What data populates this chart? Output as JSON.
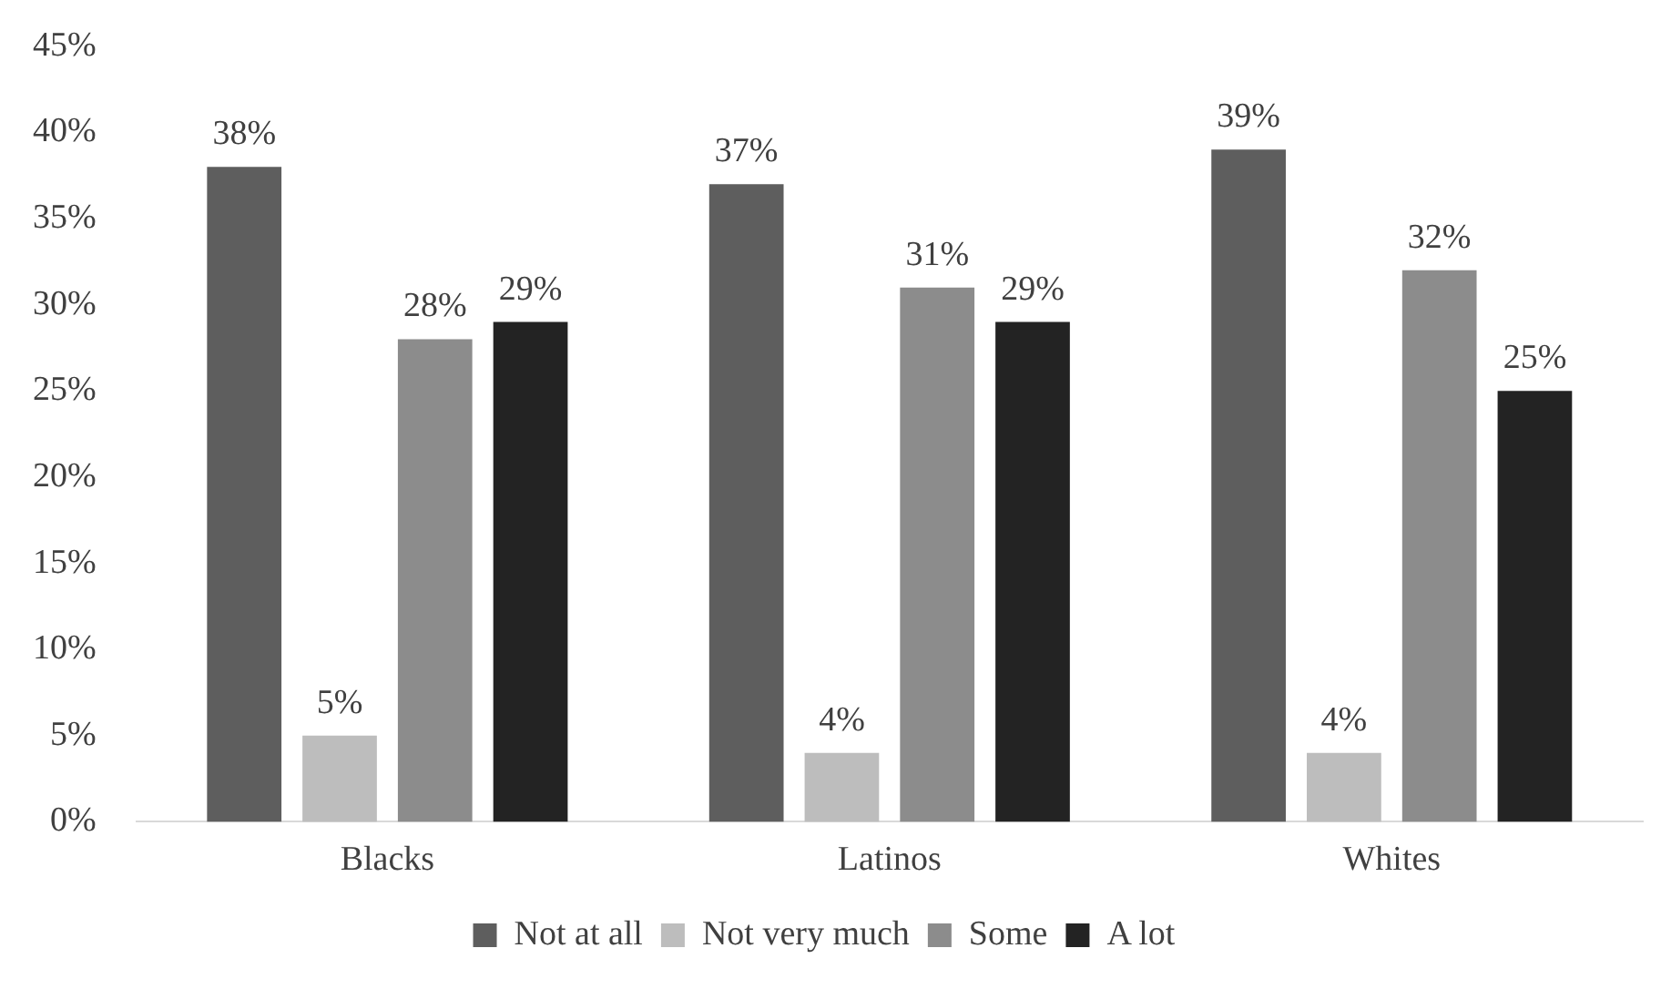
{
  "chart_data": {
    "type": "bar",
    "categories": [
      "Blacks",
      "Latinos",
      "Whites"
    ],
    "series": [
      {
        "name": "Not at all",
        "color": "#5e5e5e",
        "values": [
          38,
          37,
          39
        ],
        "value_labels": [
          "38%",
          "37%",
          "39%"
        ]
      },
      {
        "name": "Not very much",
        "color": "#bdbdbd",
        "values": [
          5,
          4,
          4
        ],
        "value_labels": [
          "5%",
          "4%",
          "4%"
        ]
      },
      {
        "name": "Some",
        "color": "#8c8c8c",
        "values": [
          28,
          31,
          32
        ],
        "value_labels": [
          "28%",
          "31%",
          "32%"
        ]
      },
      {
        "name": "A lot",
        "color": "#232323",
        "values": [
          29,
          29,
          25
        ],
        "value_labels": [
          "29%",
          "29%",
          "25%"
        ]
      }
    ],
    "ylim": [
      0,
      45
    ],
    "yticks": [
      {
        "value": 0,
        "label": "0%"
      },
      {
        "value": 5,
        "label": "5%"
      },
      {
        "value": 10,
        "label": "10%"
      },
      {
        "value": 15,
        "label": "15%"
      },
      {
        "value": 20,
        "label": "20%"
      },
      {
        "value": 25,
        "label": "25%"
      },
      {
        "value": 30,
        "label": "30%"
      },
      {
        "value": 35,
        "label": "35%"
      },
      {
        "value": 40,
        "label": "40%"
      },
      {
        "value": 45,
        "label": "45%"
      }
    ],
    "grid": false,
    "legend": "bottom"
  }
}
